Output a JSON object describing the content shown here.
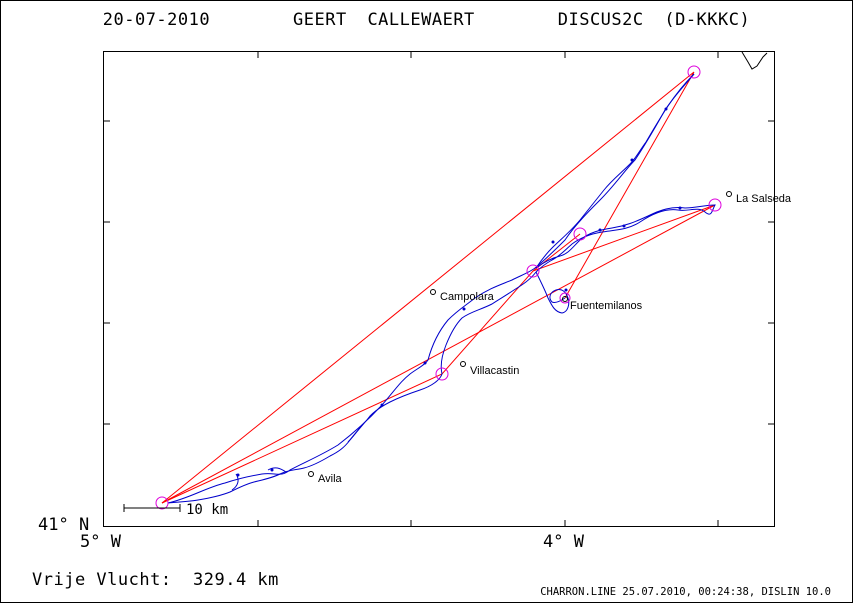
{
  "header": {
    "title": "20-07-2010    GEERT CALLEWAERT    DISCUS2C (D-KKKC)"
  },
  "axes": {
    "lat_label": "41° N",
    "lon_left_label": "5° W",
    "lon_right_label": "4° W"
  },
  "places": [
    {
      "name": "La Salseda"
    },
    {
      "name": "Campolara"
    },
    {
      "name": "Fuentemilanos"
    },
    {
      "name": "Villacastin"
    },
    {
      "name": "Avila"
    }
  ],
  "scale": {
    "label": "10 km"
  },
  "footer": {
    "distance": "Vrije Vlucht:  329.4 km",
    "credit": "CHARRON.LINE 25.07.2010, 00:24:38, DISLIN 10.0"
  },
  "colors": {
    "track": "#0000cc",
    "course": "#ff0000",
    "turnpoint": "#dd00dd"
  }
}
